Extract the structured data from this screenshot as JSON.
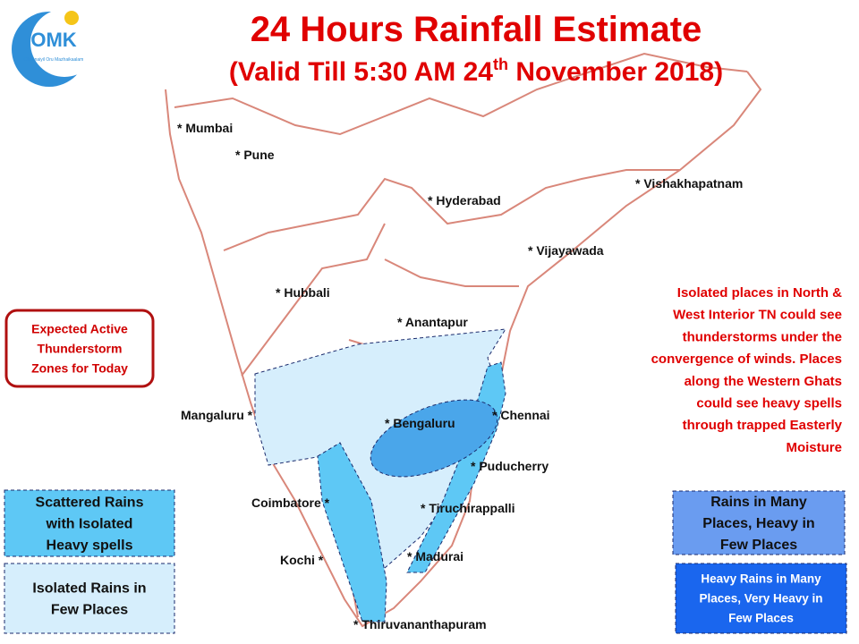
{
  "header": {
    "title": "24 Hours Rainfall Estimate",
    "subtitle_prefix": "(Valid Till 5:30 AM 24",
    "subtitle_sup": "th",
    "subtitle_suffix": " November 2018)"
  },
  "logo": {
    "mark": "OMK",
    "tagline": "Chennaiyil Oru Mazhaikaalam"
  },
  "places": [
    "* Mumbai",
    "* Pune",
    "* Hyderabad",
    "* Vishakhapatnam",
    "* Vijayawada",
    "* Hubbali",
    "* Anantapur",
    "Mangaluru *",
    "* Bengaluru",
    "* Chennai",
    "* Puducherry",
    "Coimbatore *",
    "* Tiruchirappalli",
    "Kochi *",
    "* Madurai",
    "* Thiruvananthapuram"
  ],
  "note": {
    "lines": [
      "Isolated places in North &",
      "West Interior TN could see",
      "thunderstorms  under the",
      "convergence of winds. Places",
      "along the Western Ghats",
      "could see heavy spells",
      "through trapped Easterly",
      "Moisture"
    ]
  },
  "legend": [
    {
      "lines": [
        "Expected Active",
        "Thunderstorm",
        "Zones for Today"
      ]
    },
    {
      "lines": [
        "Scattered Rains",
        "with Isolated",
        "Heavy spells"
      ],
      "color": "#5ec8f5"
    },
    {
      "lines": [
        "Isolated Rains in",
        "Few  Places"
      ],
      "color": "#d6eefc"
    },
    {
      "lines": [
        "Rains in Many",
        "Places, Heavy in",
        "Few Places"
      ],
      "color": "#6a9cf0"
    },
    {
      "lines": [
        "Heavy Rains in Many",
        "Places, Very Heavy in",
        "Few Places"
      ],
      "color": "#1a66ee"
    }
  ]
}
